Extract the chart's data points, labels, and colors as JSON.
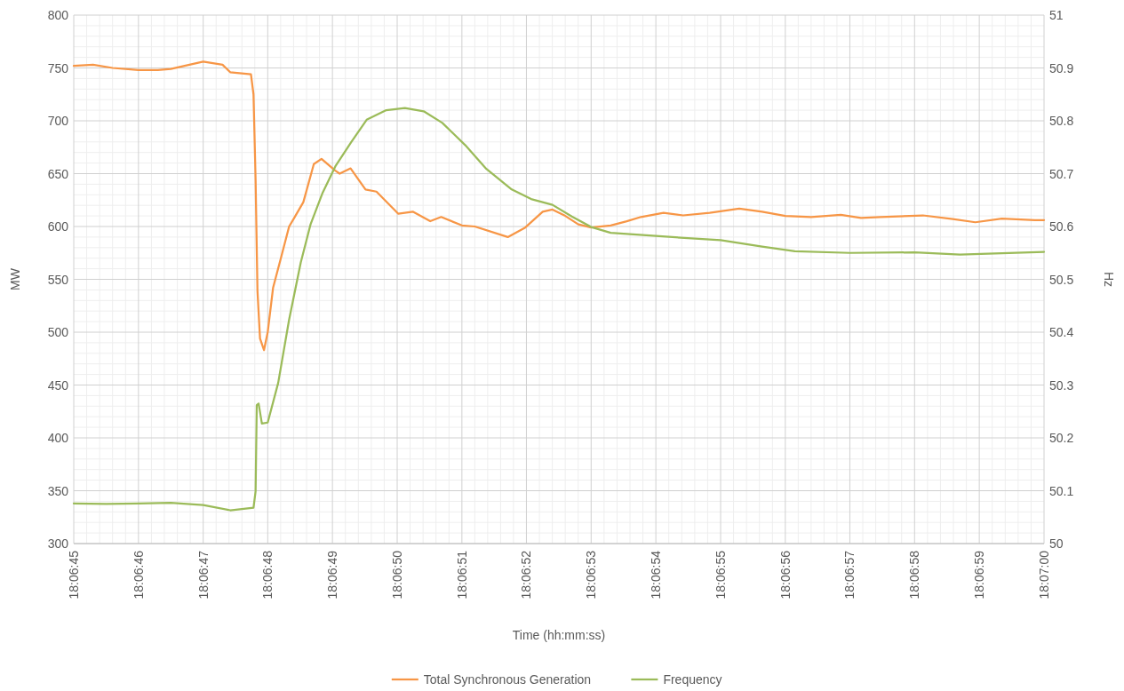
{
  "chart_data": {
    "type": "line",
    "xlabel": "Time (hh:mm:ss)",
    "ylabel": "MW",
    "y2label": "Hz",
    "xlim": [
      18.1125,
      18.116667
    ],
    "xticks": [
      {
        "value": 18.1125,
        "label": "18:06:45"
      },
      {
        "value": 18.112778,
        "label": "18:06:46"
      },
      {
        "value": 18.113056,
        "label": "18:06:47"
      },
      {
        "value": 18.113333,
        "label": "18:06:48"
      },
      {
        "value": 18.113611,
        "label": "18:06:49"
      },
      {
        "value": 18.113889,
        "label": "18:06:50"
      },
      {
        "value": 18.114167,
        "label": "18:06:51"
      },
      {
        "value": 18.114444,
        "label": "18:06:52"
      },
      {
        "value": 18.114722,
        "label": "18:06:53"
      },
      {
        "value": 18.115,
        "label": "18:06:54"
      },
      {
        "value": 18.115278,
        "label": "18:06:55"
      },
      {
        "value": 18.115556,
        "label": "18:06:56"
      },
      {
        "value": 18.115833,
        "label": "18:06:57"
      },
      {
        "value": 18.116111,
        "label": "18:06:58"
      },
      {
        "value": 18.116389,
        "label": "18:06:59"
      },
      {
        "value": 18.116667,
        "label": "18:07:00"
      }
    ],
    "ylim": [
      300,
      800
    ],
    "yticks": [
      300,
      350,
      400,
      450,
      500,
      550,
      600,
      650,
      700,
      750,
      800
    ],
    "y2lim": [
      50,
      51
    ],
    "y2ticks": [
      50,
      50.1,
      50.2,
      50.3,
      50.4,
      50.5,
      50.6,
      50.7,
      50.8,
      50.9,
      51
    ],
    "grid": true,
    "legend": "bottom",
    "marker": "none",
    "line_style": "solid",
    "series": [
      {
        "name": "Total Synchronous Generation",
        "color": "#f79646",
        "x": [
          18.1125,
          18.112583,
          18.112667,
          18.112778,
          18.112861,
          18.112917,
          18.113056,
          18.113139,
          18.113172,
          18.113261,
          18.113272,
          18.113281,
          18.113289,
          18.1133,
          18.113317,
          18.113333,
          18.113356,
          18.113392,
          18.113425,
          18.113444,
          18.113486,
          18.113531,
          18.113564,
          18.113622,
          18.113642,
          18.113689,
          18.113753,
          18.1138,
          18.113894,
          18.113956,
          18.114031,
          18.114078,
          18.114167,
          18.114222,
          18.114364,
          18.114439,
          18.114514,
          18.114556,
          18.114611,
          18.114667,
          18.114722,
          18.114806,
          18.114875,
          18.114936,
          18.115033,
          18.115117,
          18.115231,
          18.115358,
          18.115456,
          18.115556,
          18.115667,
          18.115794,
          18.115881,
          18.115964,
          18.116147,
          18.116275,
          18.116372,
          18.116486,
          18.116628,
          18.116667
        ],
        "values": [
          752,
          753,
          750,
          748,
          748,
          749,
          756,
          753,
          746,
          744,
          725,
          644,
          539,
          494,
          483,
          500,
          542,
          572,
          600,
          607,
          623,
          659,
          664,
          653,
          650,
          655,
          635,
          633,
          612,
          614,
          605,
          609,
          601,
          600,
          590,
          599,
          614,
          616,
          610,
          602,
          599,
          601,
          605,
          609,
          613,
          610.5,
          613,
          617,
          614,
          610,
          609,
          611,
          608,
          609,
          610.5,
          607,
          604,
          607.5,
          606,
          606
        ]
      },
      {
        "name": "Frequency",
        "color": "#9bbb59",
        "axis": "y2",
        "x": [
          18.1125,
          18.112639,
          18.112778,
          18.112917,
          18.113056,
          18.113172,
          18.113272,
          18.113281,
          18.113286,
          18.113294,
          18.113308,
          18.113333,
          18.113378,
          18.113425,
          18.113475,
          18.113517,
          18.113569,
          18.113625,
          18.113692,
          18.113758,
          18.113842,
          18.113922,
          18.114003,
          18.114083,
          18.114181,
          18.114272,
          18.114381,
          18.114464,
          18.114556,
          18.114639,
          18.114722,
          18.114806,
          18.115,
          18.115278,
          18.115456,
          18.115597,
          18.115833,
          18.116111,
          18.116306,
          18.116667
        ],
        "values": [
          50.076,
          50.075,
          50.076,
          50.077,
          50.073,
          50.063,
          50.068,
          50.099,
          50.262,
          50.265,
          50.227,
          50.229,
          50.304,
          50.424,
          50.532,
          50.604,
          50.664,
          50.715,
          50.76,
          50.802,
          50.82,
          50.824,
          50.818,
          50.796,
          50.754,
          50.709,
          50.67,
          50.652,
          50.641,
          50.619,
          50.599,
          50.588,
          50.582,
          50.574,
          50.562,
          50.553,
          50.55,
          50.551,
          50.547,
          50.552
        ]
      }
    ]
  }
}
